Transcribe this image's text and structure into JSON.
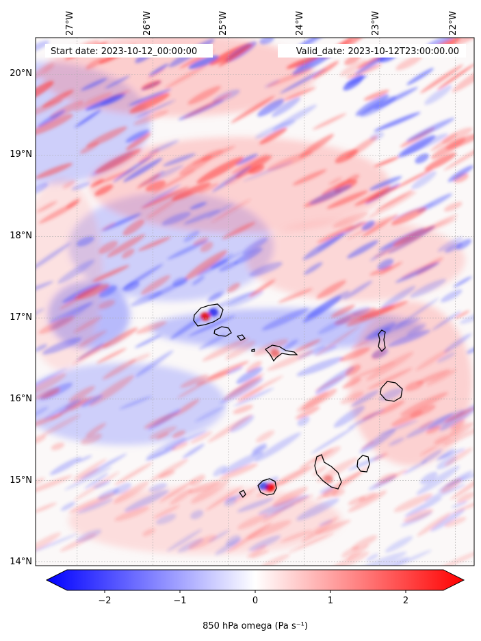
{
  "map": {
    "start_label": "Start date: 2023-10-12_00:00:00",
    "valid_label": "Valid_date: 2023-10-12T23:00:00.00",
    "lon_ticks": [
      "27°W",
      "26°W",
      "25°W",
      "24°W",
      "23°W",
      "22°W"
    ],
    "lat_ticks": [
      "20°N",
      "19°N",
      "18°N",
      "17°N",
      "16°N",
      "15°N",
      "14°N"
    ],
    "lon_range": [
      -27.55,
      -21.75
    ],
    "lat_range": [
      13.95,
      20.45
    ],
    "projection": "plate carree",
    "gridlines": true,
    "field_colormap": "bwr (blue-white-red)",
    "islands": [
      "Santo Antão",
      "São Vicente",
      "Santa Luzia",
      "Raso",
      "São Nicolau",
      "Sal",
      "Boa Vista",
      "Maio",
      "Santiago",
      "Fogo",
      "Brava"
    ]
  },
  "colorbar": {
    "label": "850 hPa omega (Pa s⁻¹)",
    "ticks": [
      "−2",
      "−1",
      "0",
      "1",
      "2"
    ],
    "tick_values": [
      -2,
      -1,
      0,
      1,
      2
    ],
    "range": [
      -2.5,
      2.5
    ],
    "extend": "both",
    "colors": {
      "min": "#0000ff",
      "mid": "#ffffff",
      "max": "#ff0000"
    }
  }
}
